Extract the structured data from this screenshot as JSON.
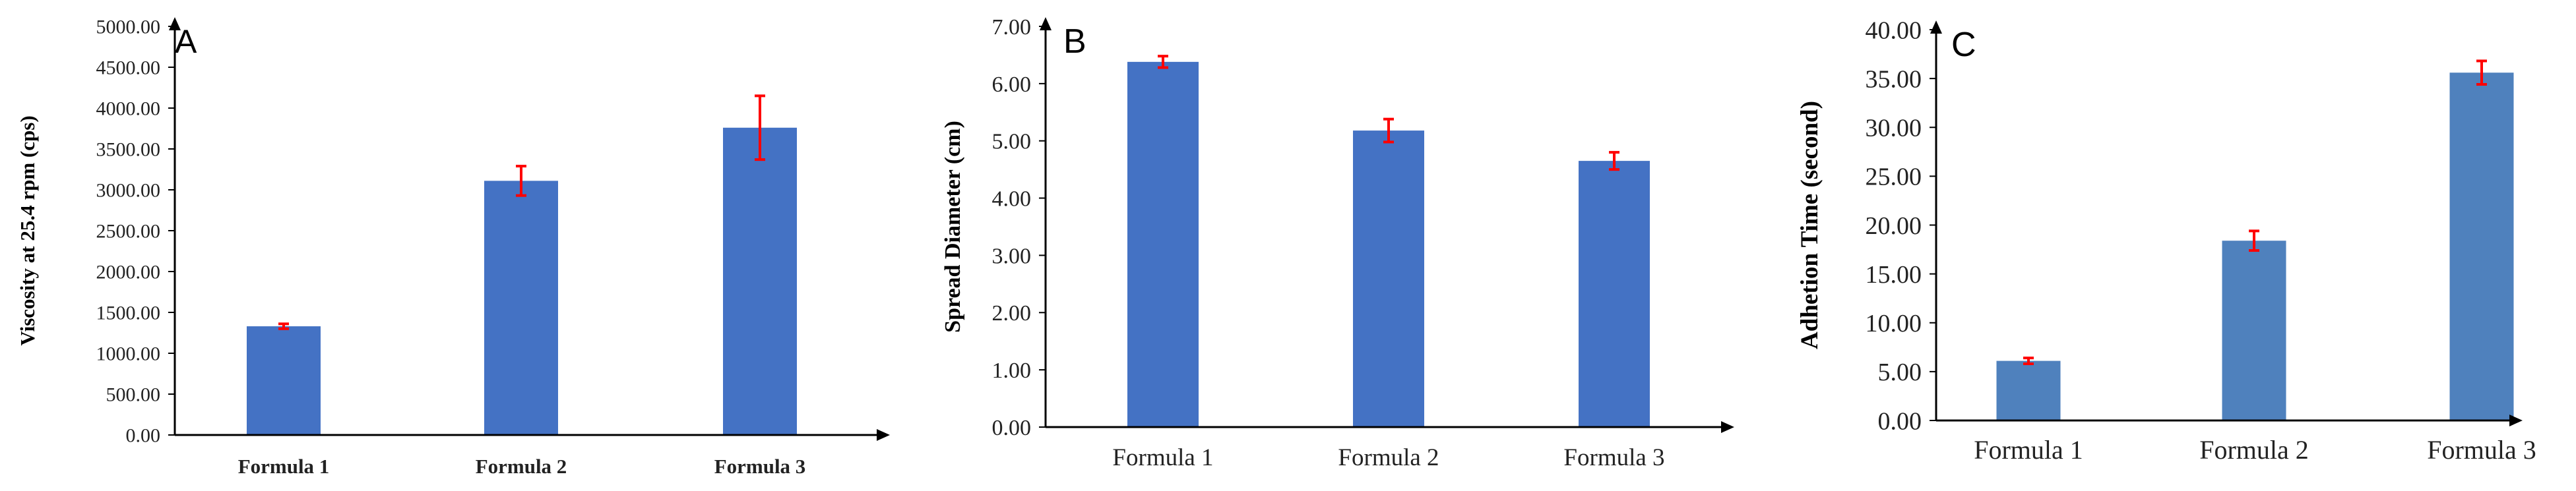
{
  "colors": {
    "bar": "#4472C4",
    "bar_c": "#4F81BD",
    "error": "#FF0000",
    "axis": "#000000"
  },
  "chart_data": [
    {
      "type": "bar",
      "panel": "A",
      "categories": [
        "Formula 1",
        "Formula 2",
        "Formula 3"
      ],
      "values": [
        1330,
        3110,
        3760
      ],
      "errors": [
        30,
        180,
        390
      ],
      "ylabel": "Viscosity at 25.4 rpm (cps)",
      "ylim": [
        0,
        5000
      ],
      "yticks": [
        "0.00",
        "500.00",
        "1000.00",
        "1500.00",
        "2000.00",
        "2500.00",
        "3000.00",
        "3500.00",
        "4000.00",
        "4500.00",
        "5000.00"
      ],
      "xtick_bold": true,
      "grid": false
    },
    {
      "type": "bar",
      "panel": "B",
      "categories": [
        "Formula 1",
        "Formula 2",
        "Formula 3"
      ],
      "values": [
        6.38,
        5.18,
        4.65
      ],
      "errors": [
        0.1,
        0.2,
        0.15
      ],
      "ylabel": "Spread Diameter (cm)",
      "ylim": [
        0,
        7
      ],
      "yticks": [
        "0.00",
        "1.00",
        "2.00",
        "3.00",
        "4.00",
        "5.00",
        "6.00",
        "7.00"
      ],
      "xtick_bold": false,
      "grid": false
    },
    {
      "type": "bar",
      "panel": "C",
      "categories": [
        "Formula 1",
        "Formula 2",
        "Formula 3"
      ],
      "values": [
        6.1,
        18.4,
        35.6
      ],
      "errors": [
        0.3,
        1.0,
        1.2
      ],
      "ylabel": "Adhetion Time (second)",
      "ylim": [
        0,
        40
      ],
      "yticks": [
        "0.00",
        "5.00",
        "10.00",
        "15.00",
        "20.00",
        "25.00",
        "30.00",
        "35.00",
        "40.00"
      ],
      "xtick_bold": false,
      "grid": false
    }
  ]
}
